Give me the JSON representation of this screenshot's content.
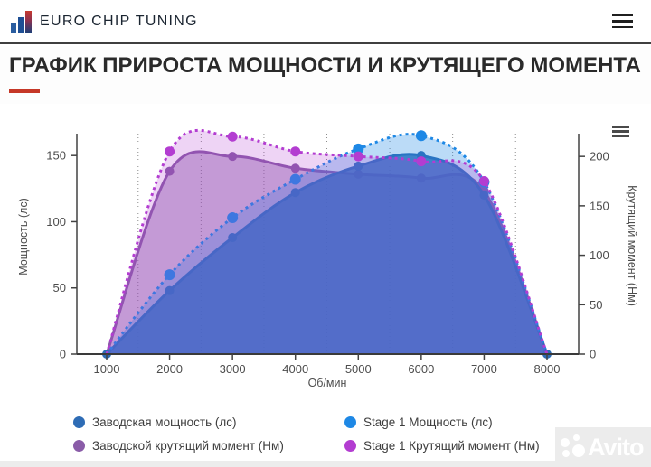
{
  "header": {
    "brand": "EURO CHIP TUNING"
  },
  "title": {
    "text": "ГРАФИК ПРИРОСТА МОЩНОСТИ И КРУТЯЩЕГО МОМЕНТА"
  },
  "watermark": {
    "text": "Avito"
  },
  "colors": {
    "accent_red": "#c53727",
    "axis_text": "#4d4d4d",
    "axis_line": "#424242"
  },
  "chart_data": {
    "type": "area",
    "x": [
      1000,
      2000,
      3000,
      4000,
      5000,
      6000,
      7000,
      8000
    ],
    "xlabel": "Об/мин",
    "ylabel_left": "Мощность (лс)",
    "ylabel_right": "Крутящий момент (Нм)",
    "left_ticks": [
      0,
      50,
      100,
      150
    ],
    "right_ticks": [
      0,
      50,
      100,
      150,
      200
    ],
    "ylim_left": [
      0,
      166.5
    ],
    "ylim_right": [
      0,
      223
    ],
    "xlim": [
      1000,
      8000
    ],
    "gridlines_x": [
      1500,
      2500,
      3500,
      4500,
      5500,
      6500,
      7500
    ],
    "grid": "dotted-vertical",
    "legend_position": "bottom",
    "series": [
      {
        "name": "Заводская мощность (лс)",
        "axis": "left",
        "dashed": false,
        "color": "#2e6cb5",
        "fill": "rgba(46,108,181,0.85)",
        "values": [
          0,
          48,
          88,
          122,
          142,
          150,
          120,
          0
        ]
      },
      {
        "name": "Stage 1 Мощность (лс)",
        "axis": "left",
        "dashed": true,
        "color": "#1e88e5",
        "fill": "rgba(30,136,229,0.30)",
        "values": [
          0,
          60,
          103,
          132,
          155,
          165,
          130,
          0
        ]
      },
      {
        "name": "Заводской крутящий момент (Нм)",
        "axis": "right",
        "dashed": false,
        "color": "#8a5ca8",
        "fill": "rgba(138,92,168,0.45)",
        "values": [
          0,
          185,
          200,
          188,
          182,
          178,
          165,
          0
        ]
      },
      {
        "name": "Stage 1 Крутящий момент (Нм)",
        "axis": "right",
        "dashed": true,
        "color": "#b33dd1",
        "fill": "rgba(179,61,209,0.22)",
        "values": [
          0,
          205,
          220,
          205,
          200,
          195,
          175,
          0
        ]
      }
    ]
  }
}
